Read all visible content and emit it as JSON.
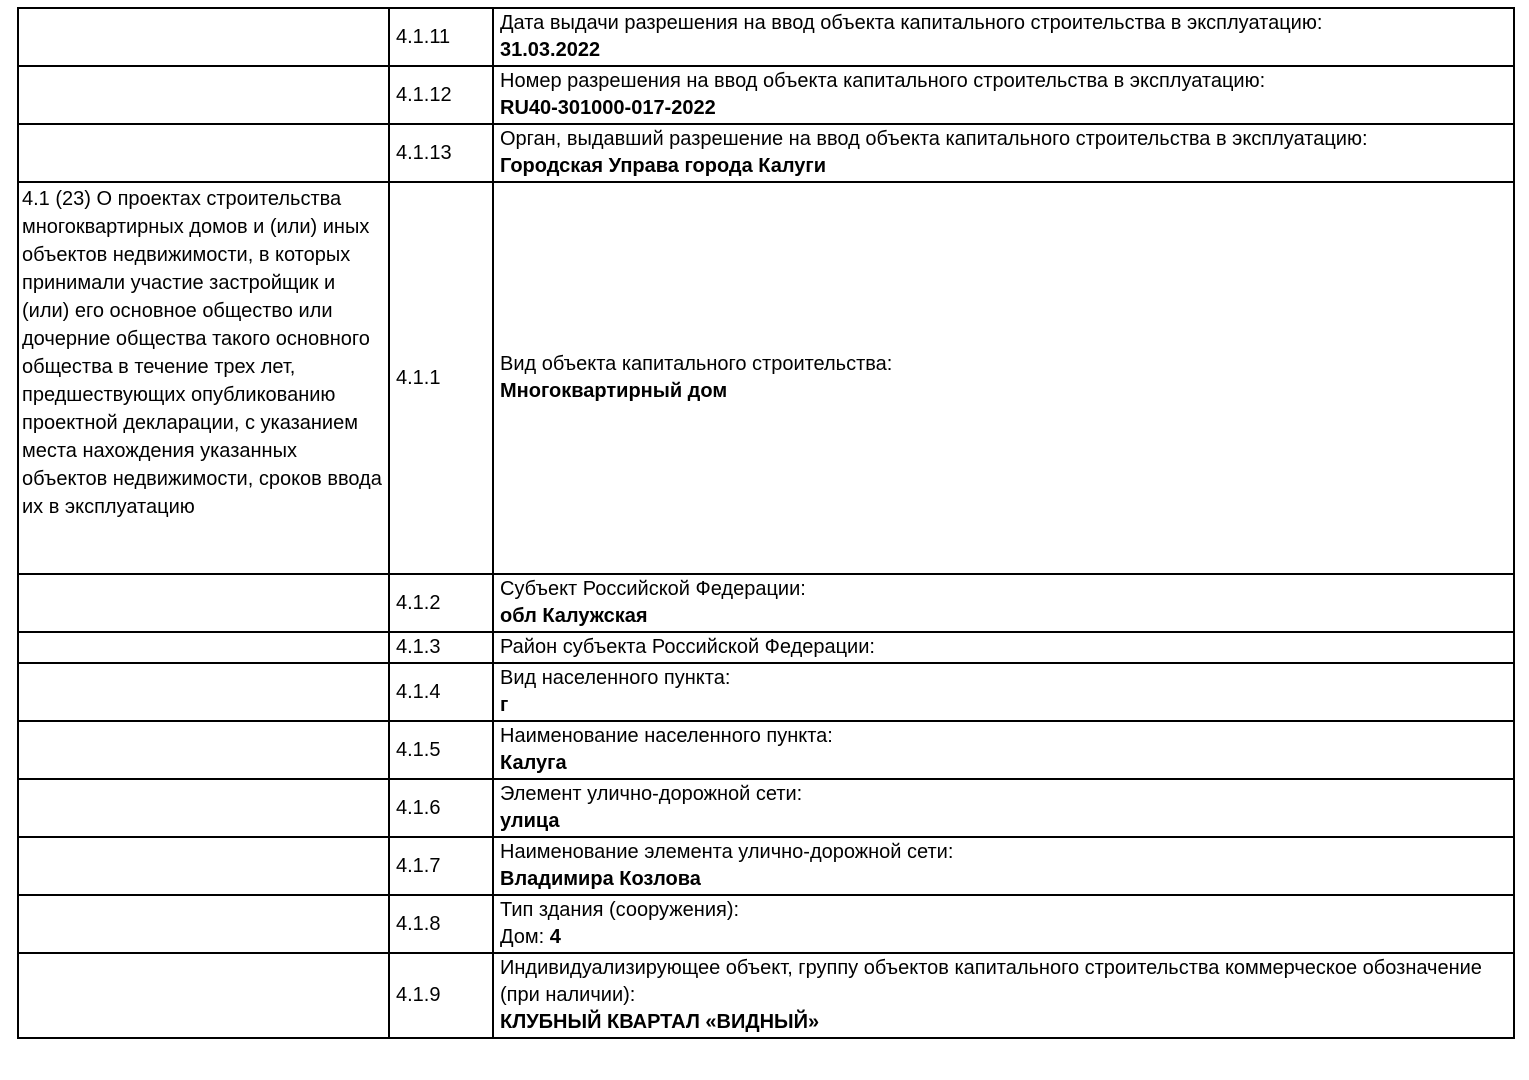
{
  "page": {
    "background_color": "#ffffff",
    "text_color": "#000000",
    "border_color": "#000000"
  },
  "table": {
    "section_note": "4.1 (23) О проектах строительства многоквартирных домов и (или) иных объектов недвижимости, в которых принимали участие застройщик и (или) его основное общество или дочерние общества такого основного общества в течение трех лет, предшествующих опубликованию проектной декларации, с указанием места нахождения указанных объектов недвижимости, сроков ввода их в эксплуатацию",
    "rows": [
      {
        "code": "4.1.11",
        "label": "Дата выдачи разрешения на ввод объекта капитального строительства в эксплуатацию:",
        "value": "31.03.2022"
      },
      {
        "code": "4.1.12",
        "label": "Номер разрешения на ввод объекта капитального строительства в эксплуатацию:",
        "value": "RU40-301000-017-2022"
      },
      {
        "code": "4.1.13",
        "label": "Орган, выдавший разрешение на ввод объекта капитального строительства в эксплуатацию:",
        "value": "Городская Управа города Калуги"
      },
      {
        "code": "4.1.1",
        "label": "Вид объекта капитального строительства:",
        "value": "Многоквартирный дом",
        "has_section_note": true
      },
      {
        "code": "4.1.2",
        "label": "Субъект Российской Федерации:",
        "value": "обл Калужская"
      },
      {
        "code": "4.1.3",
        "label": "Район субъекта Российской Федерации:",
        "value": ""
      },
      {
        "code": "4.1.4",
        "label": "Вид населенного пункта:",
        "value": "г"
      },
      {
        "code": "4.1.5",
        "label": "Наименование населенного пункта:",
        "value": "Калуга"
      },
      {
        "code": "4.1.6",
        "label": "Элемент улично-дорожной сети:",
        "value": "улица"
      },
      {
        "code": "4.1.7",
        "label": "Наименование элемента улично-дорожной сети:",
        "value": "Владимира Козлова"
      },
      {
        "code": "4.1.8",
        "label": "Тип здания (сооружения):",
        "value_prefix": "Дом: ",
        "value": "4"
      },
      {
        "code": "4.1.9",
        "label": "Индивидуализирующее объект, группу объектов капитального строительства коммерческое обозначение (при наличии):",
        "value": "КЛУБНЫЙ КВАРТАЛ «ВИДНЫЙ»"
      }
    ]
  }
}
